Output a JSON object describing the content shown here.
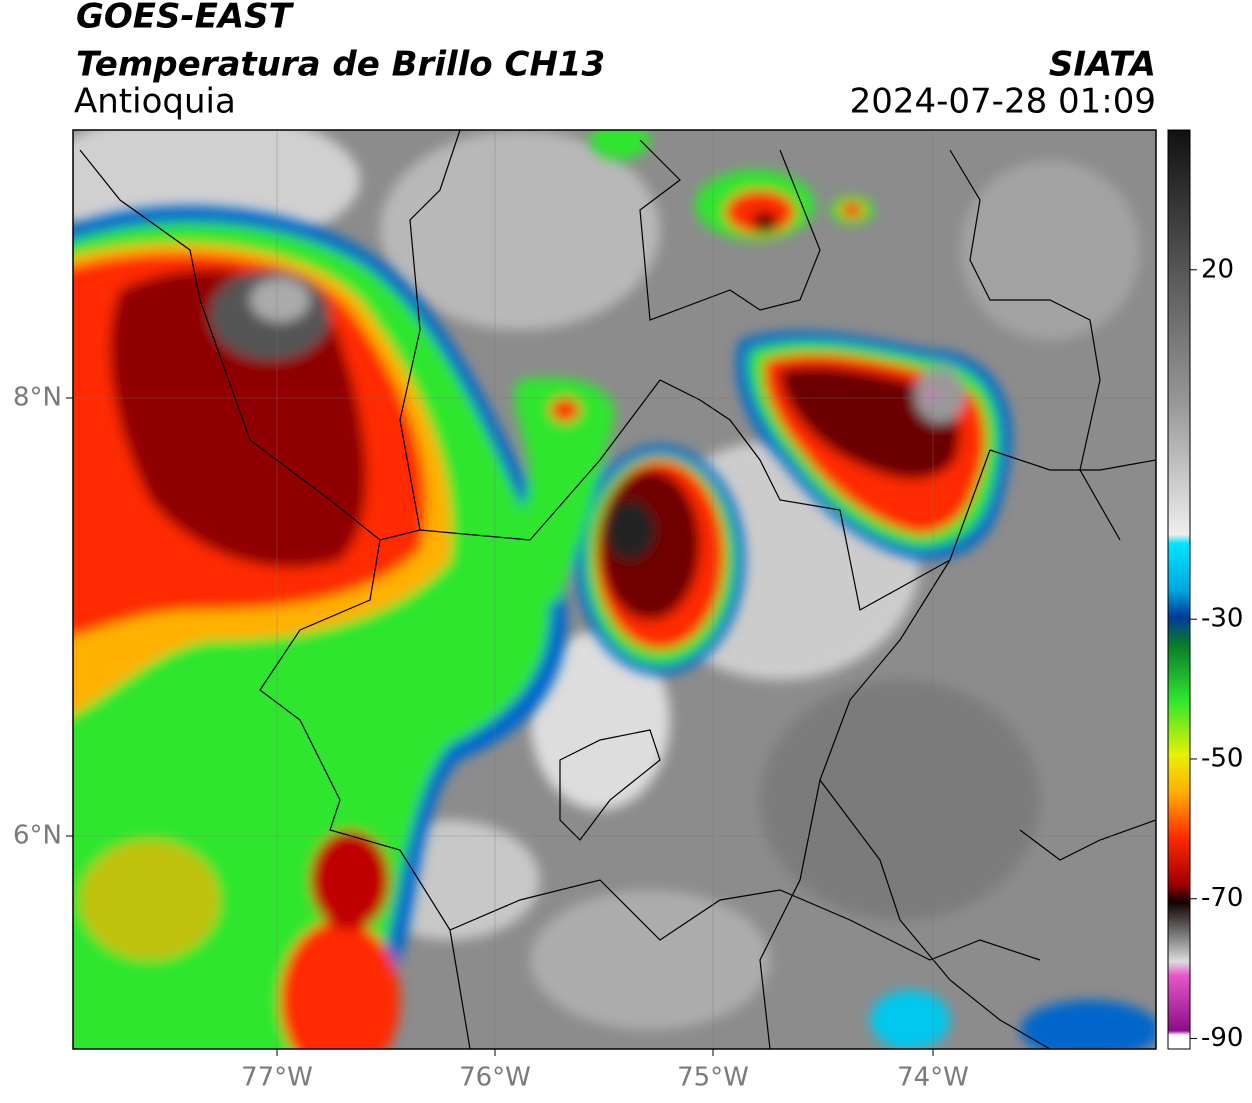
{
  "header": {
    "title": "GOES-EAST",
    "subtitle": "Temperatura de Brillo CH13",
    "region": "Antioquia",
    "source": "SIATA",
    "timestamp": "2024-07-28 01:09"
  },
  "map": {
    "lat_labels": [
      "8°N",
      "6°N"
    ],
    "lon_labels": [
      "77°W",
      "76°W",
      "75°W",
      "74°W"
    ]
  },
  "colorbar": {
    "lim": [
      40,
      -91.5
    ],
    "ticks": [
      20,
      -30,
      -50,
      -70,
      -90
    ]
  }
}
